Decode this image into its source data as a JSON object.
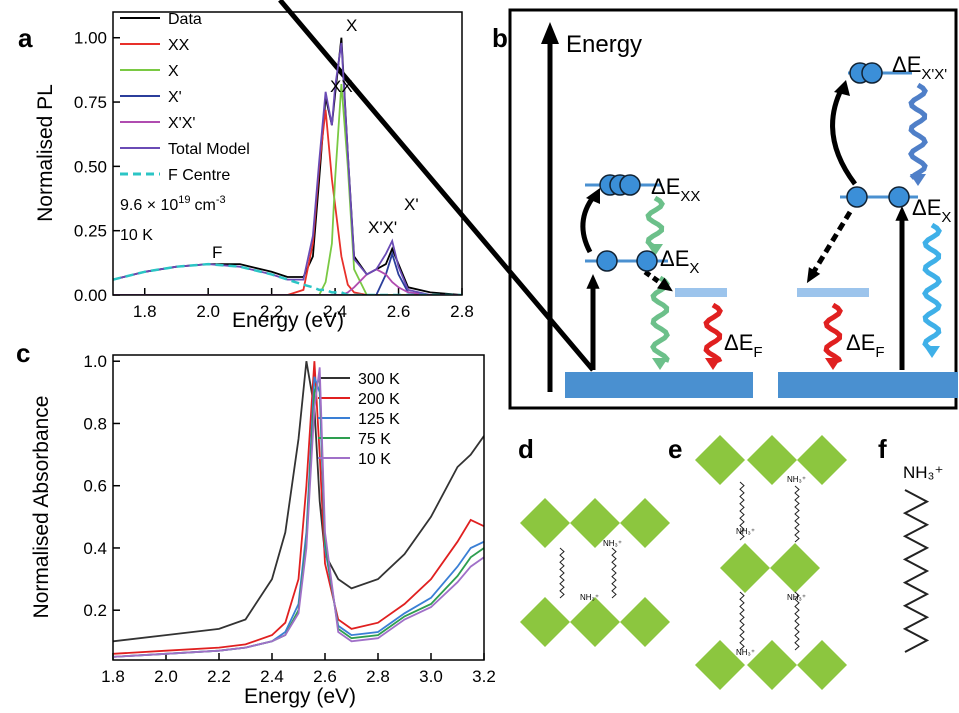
{
  "chart_data": [
    {
      "type": "line",
      "xlabel": "Energy (eV)",
      "ylabel": "Normalised PL",
      "x": [
        1.7,
        1.8,
        1.9,
        2.0,
        2.1,
        2.2,
        2.25,
        2.3,
        2.33,
        2.35,
        2.37,
        2.39,
        2.4,
        2.42,
        2.44,
        2.46,
        2.5,
        2.53,
        2.56,
        2.58,
        2.6,
        2.63,
        2.7,
        2.8
      ],
      "series": [
        {
          "name": "Data",
          "color": "#000000",
          "values": [
            0.06,
            0.09,
            0.11,
            0.12,
            0.12,
            0.09,
            0.07,
            0.07,
            0.15,
            0.45,
            0.77,
            0.66,
            0.78,
            1.0,
            0.55,
            0.15,
            0.08,
            0.1,
            0.12,
            0.18,
            0.12,
            0.03,
            0.01,
            0.0
          ]
        },
        {
          "name": "XX",
          "color": "#e8302a",
          "values": [
            0,
            0,
            0,
            0,
            0,
            0,
            0,
            0.02,
            0.2,
            0.5,
            0.72,
            0.45,
            0.35,
            0.15,
            0.04,
            0.01,
            0,
            0,
            0,
            0,
            0,
            0,
            0,
            0
          ]
        },
        {
          "name": "X",
          "color": "#7ac943",
          "values": [
            0,
            0,
            0,
            0,
            0,
            0,
            0,
            0,
            0,
            0,
            0.05,
            0.2,
            0.45,
            0.82,
            0.5,
            0.1,
            0,
            0,
            0,
            0,
            0,
            0,
            0,
            0
          ]
        },
        {
          "name": "X'",
          "color": "#2b3e9b",
          "values": [
            0,
            0,
            0,
            0,
            0,
            0,
            0,
            0,
            0,
            0,
            0,
            0,
            0,
            0,
            0,
            0,
            0,
            0,
            0.08,
            0.16,
            0.08,
            0.01,
            0,
            0
          ]
        },
        {
          "name": "X'X'",
          "color": "#b04cb0",
          "values": [
            0,
            0,
            0,
            0,
            0,
            0,
            0,
            0,
            0,
            0,
            0,
            0,
            0,
            0,
            0.01,
            0.03,
            0.08,
            0.1,
            0.08,
            0.05,
            0.03,
            0.01,
            0,
            0
          ]
        },
        {
          "name": "Total Model",
          "color": "#6a4bb5",
          "values": [
            0.06,
            0.09,
            0.11,
            0.12,
            0.11,
            0.08,
            0.06,
            0.06,
            0.23,
            0.52,
            0.79,
            0.66,
            0.81,
            0.98,
            0.55,
            0.14,
            0.08,
            0.1,
            0.16,
            0.21,
            0.11,
            0.02,
            0,
            0
          ]
        },
        {
          "name": "F Centre",
          "color": "#2bc5c5",
          "style": "dashed",
          "values": [
            0.06,
            0.09,
            0.11,
            0.12,
            0.11,
            0.08,
            0.06,
            0.04,
            0.03,
            0.02,
            0.02,
            0.01,
            0.01,
            0.01,
            0,
            0,
            0,
            0,
            0,
            0,
            0,
            0,
            0,
            0
          ]
        }
      ],
      "xlim": [
        1.7,
        2.8
      ],
      "ylim": [
        0,
        1.1
      ],
      "xticks": [
        1.8,
        {
          "value": 2,
          "label": "2.0"
        },
        2.2,
        2.4,
        2.6,
        2.8
      ],
      "yticks": [
        {
          "value": 0,
          "label": "0.00"
        },
        0.25,
        {
          "value": 0.5,
          "label": "0.50"
        },
        0.75,
        {
          "value": 1,
          "label": "1.00"
        }
      ],
      "legend": "upper left",
      "annotations": [
        "XX",
        "X",
        "X'X'",
        "X'",
        "F"
      ],
      "density": [
        "9.6 × 10",
        "19",
        "cm",
        "-3"
      ],
      "temperature": "10 K"
    },
    {
      "type": "line",
      "xlabel": "Energy (eV)",
      "ylabel": "Normalised Absorbance",
      "x": [
        1.8,
        2.0,
        2.2,
        2.3,
        2.4,
        2.45,
        2.5,
        2.53,
        2.56,
        2.58,
        2.6,
        2.65,
        2.7,
        2.8,
        2.9,
        3.0,
        3.1,
        3.15,
        3.2
      ],
      "series": [
        {
          "name": "300 K",
          "color": "#333333",
          "values": [
            0.1,
            0.12,
            0.14,
            0.17,
            0.3,
            0.45,
            0.75,
            1.0,
            0.85,
            0.55,
            0.38,
            0.3,
            0.27,
            0.3,
            0.38,
            0.5,
            0.66,
            0.7,
            0.76
          ]
        },
        {
          "name": "200 K",
          "color": "#e02020",
          "values": [
            0.06,
            0.07,
            0.08,
            0.09,
            0.12,
            0.16,
            0.3,
            0.6,
            1.0,
            0.7,
            0.35,
            0.17,
            0.14,
            0.16,
            0.22,
            0.3,
            0.42,
            0.49,
            0.47
          ]
        },
        {
          "name": "125 K",
          "color": "#3a7fd5",
          "values": [
            0.05,
            0.06,
            0.07,
            0.08,
            0.1,
            0.13,
            0.22,
            0.45,
            0.95,
            0.9,
            0.4,
            0.15,
            0.12,
            0.13,
            0.19,
            0.24,
            0.34,
            0.4,
            0.42
          ]
        },
        {
          "name": "75 K",
          "color": "#2e9e50",
          "values": [
            0.05,
            0.06,
            0.07,
            0.08,
            0.1,
            0.12,
            0.2,
            0.42,
            0.9,
            0.95,
            0.42,
            0.14,
            0.11,
            0.12,
            0.18,
            0.22,
            0.31,
            0.37,
            0.4
          ]
        },
        {
          "name": "10 K",
          "color": "#a070c8",
          "values": [
            0.05,
            0.06,
            0.07,
            0.08,
            0.1,
            0.12,
            0.19,
            0.4,
            0.85,
            0.98,
            0.45,
            0.13,
            0.1,
            0.11,
            0.17,
            0.21,
            0.29,
            0.34,
            0.37
          ]
        }
      ],
      "xlim": [
        1.8,
        3.2
      ],
      "ylim": [
        0.04,
        1.02
      ],
      "xticks": [
        1.8,
        {
          "value": 2,
          "label": "2.0"
        },
        2.2,
        2.4,
        2.6,
        2.8,
        {
          "value": 3,
          "label": "3.0"
        },
        3.2
      ],
      "yticks": [
        0.2,
        0.4,
        0.6,
        0.8,
        {
          "value": 1,
          "label": "1.0"
        }
      ],
      "legend": "upper right"
    }
  ],
  "panel_labels": [
    "a",
    "b",
    "c",
    "d",
    "e",
    "f"
  ],
  "diagram_b": {
    "axis_label": "Energy",
    "levels": [
      {
        "main": "ΔE",
        "sub": "XX"
      },
      {
        "main": "ΔE",
        "sub": "X"
      },
      {
        "main": "ΔE",
        "sub": "F"
      },
      {
        "main": "ΔE",
        "sub": "X'X'"
      },
      {
        "main": "ΔE",
        "sub": "X"
      },
      {
        "main": "ΔE",
        "sub": "F"
      }
    ]
  },
  "molecule_labels": [
    "NH₃⁺",
    "NH₃⁺",
    "NH₃⁺",
    "NH₃⁺",
    "NH₃⁺",
    "NH₃⁺",
    "NH₃⁺"
  ]
}
